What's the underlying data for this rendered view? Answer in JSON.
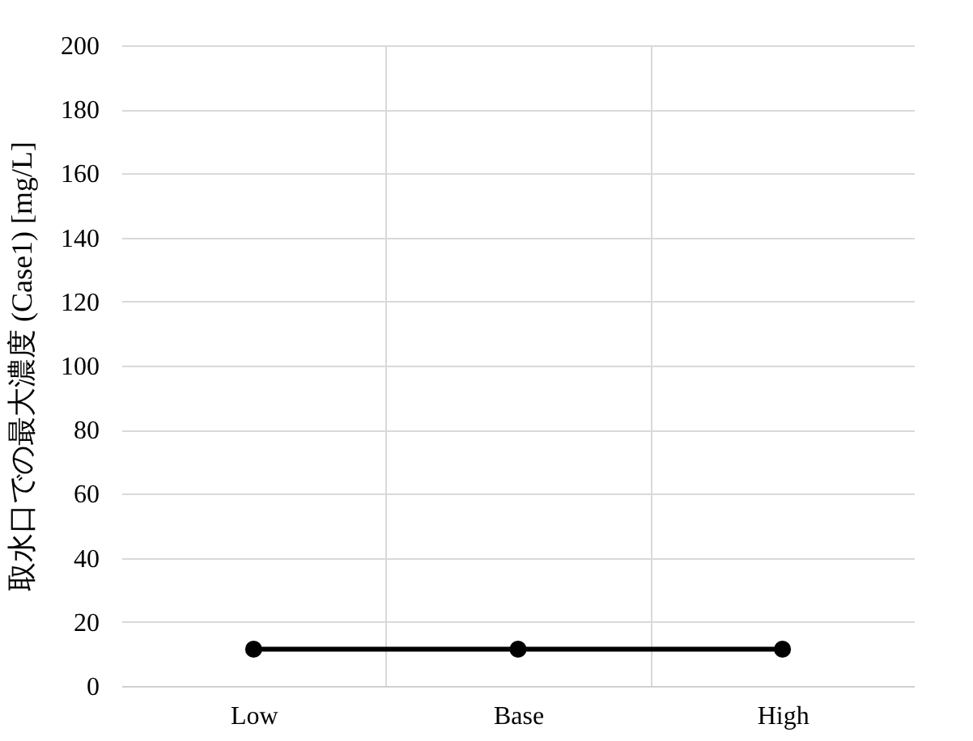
{
  "chart_data": {
    "type": "line",
    "ylabel": "取水口での最大濃度 (Case1) [mg/L]",
    "categories": [
      "Low",
      "Base",
      "High"
    ],
    "series": [
      {
        "color": "#000000",
        "values": [
          11.5,
          11.5,
          11.5
        ]
      }
    ],
    "ylim": [
      0,
      200
    ],
    "yticks": [
      0,
      20,
      40,
      60,
      80,
      100,
      120,
      140,
      160,
      180,
      200
    ],
    "grid": true,
    "legend": false,
    "marker": "circle",
    "line_style": "solid"
  }
}
